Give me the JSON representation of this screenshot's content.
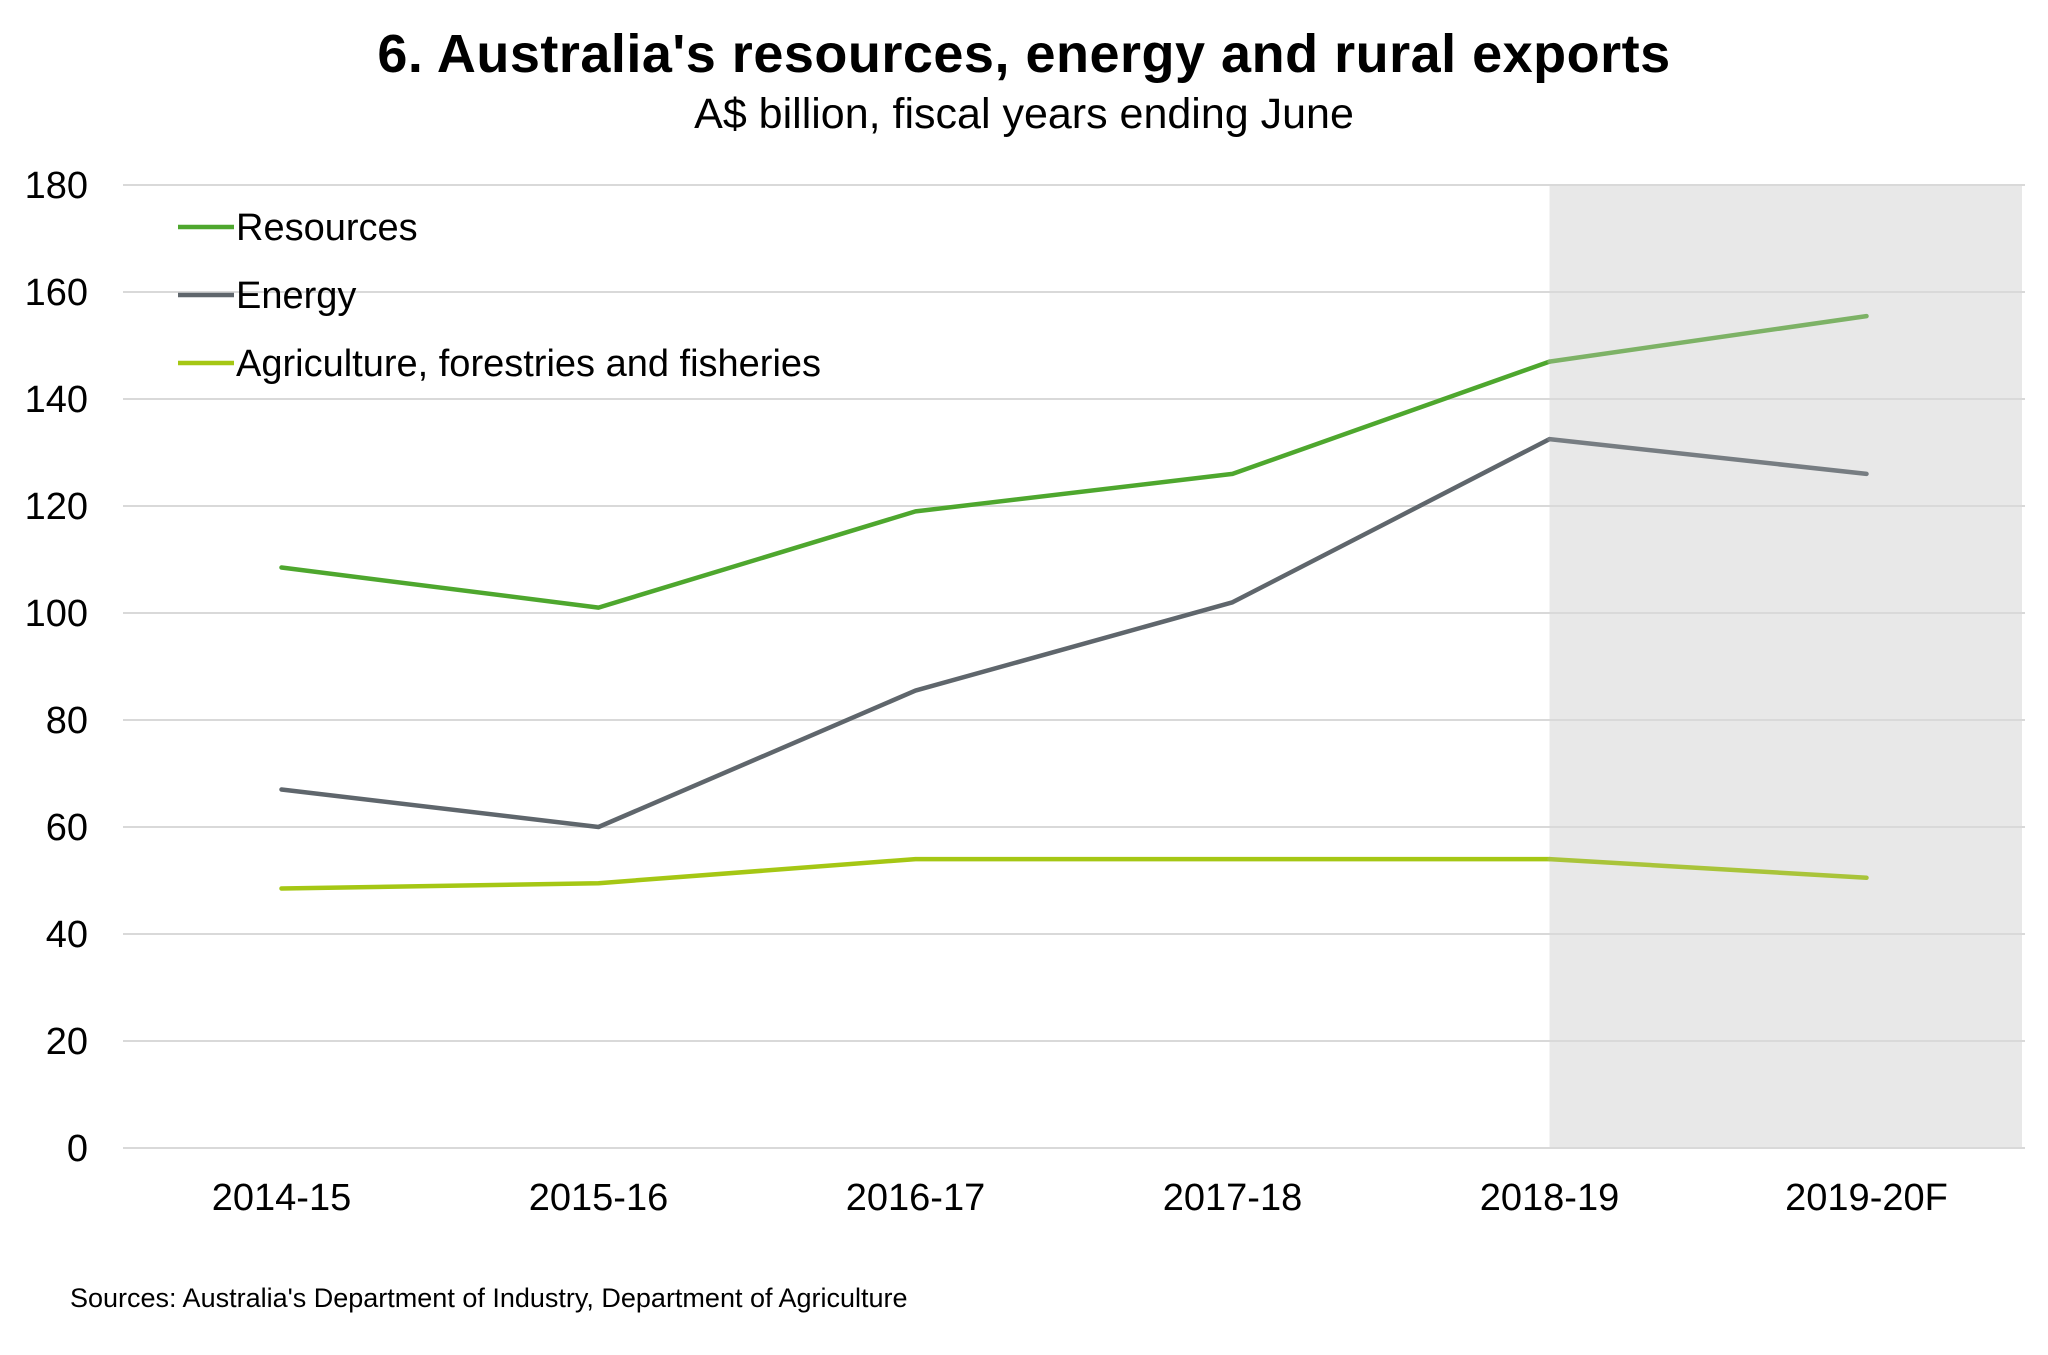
{
  "chart_data": {
    "type": "line",
    "title": "6. Australia's resources, energy and rural exports",
    "subtitle": "A$ billion, fiscal years ending June",
    "categories": [
      "2014-15",
      "2015-16",
      "2016-17",
      "2017-18",
      "2018-19",
      "2019-20F"
    ],
    "series": [
      {
        "name": "Resources",
        "color": "#4EA72E",
        "forecast_color": "#7DB266",
        "values": [
          108.5,
          101,
          119,
          126,
          147,
          155.5
        ]
      },
      {
        "name": "Energy",
        "color": "#5F666C",
        "forecast_color": "#777D82",
        "values": [
          67,
          60,
          85.5,
          102,
          132.5,
          126
        ]
      },
      {
        "name": "Agriculture, forestries and fisheries",
        "color": "#A5C714",
        "forecast_color": "#A9C43A",
        "values": [
          48.5,
          49.5,
          54,
          54,
          54,
          50.5
        ]
      }
    ],
    "ylim": [
      0,
      180
    ],
    "y_ticks": [
      0,
      20,
      40,
      60,
      80,
      100,
      120,
      140,
      160,
      180
    ],
    "xlabel": "",
    "ylabel": "",
    "grid": true,
    "legend_position": "top-left",
    "shaded_region": {
      "from_category": "2018-19",
      "to_category": "2019-20F",
      "color": "#E8E8E8"
    },
    "gridline_color": "#D9D9D9"
  },
  "source_note": "Sources: Australia's Department of Industry, Department of Agriculture"
}
